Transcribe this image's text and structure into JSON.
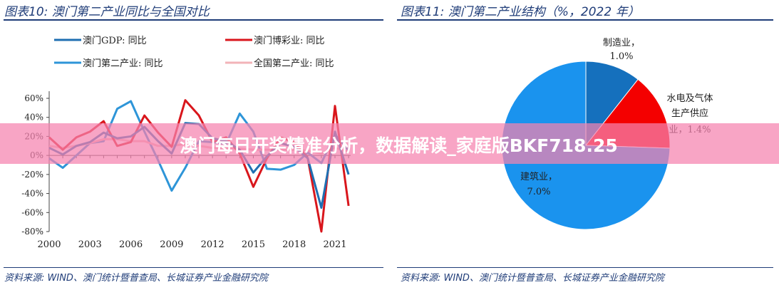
{
  "left": {
    "title": "图表10:  澳门第二产业同比与全国对比",
    "source": "资料来源: WIND、澳门统计暨普查局、长城证券产业金融研究院"
  },
  "right": {
    "title": "图表11:  澳门第二产业结构（%，2022 年）",
    "source": "资料来源: WIND、澳门统计暨普查局、长城证券产业金融研究院"
  },
  "banner": {
    "text": "澳门每日开奖精准分析，数据解读_家庭版BKF718.25"
  },
  "chart_data": [
    {
      "type": "line",
      "title": "",
      "x": [
        2000,
        2001,
        2002,
        2003,
        2004,
        2005,
        2006,
        2007,
        2008,
        2009,
        2010,
        2011,
        2012,
        2013,
        2014,
        2015,
        2016,
        2017,
        2018,
        2019,
        2020,
        2021,
        2022
      ],
      "xticks": [
        "2000",
        "2003",
        "2006",
        "2009",
        "2012",
        "2015",
        "2018",
        "2021"
      ],
      "yticks": [
        "60%",
        "40%",
        "20%",
        "0%",
        "-20%",
        "-40%",
        "-60%",
        "-80%"
      ],
      "ylim": [
        -80,
        60
      ],
      "grid": false,
      "legend": "top",
      "series": [
        {
          "name": "澳门第二产业: 同比",
          "color": "#2e95d8",
          "values": [
            -3,
            -13,
            0,
            13,
            15,
            49,
            57,
            25,
            -5,
            -37,
            -13,
            15,
            14,
            12,
            44,
            25,
            -14,
            -15,
            -10,
            3,
            -8,
            22,
            5
          ]
        },
        {
          "name": "全国第二产业: 同比",
          "color": "#f2b3b8",
          "values": [
            10,
            8,
            10,
            13,
            17,
            17,
            15,
            15,
            10,
            10,
            12,
            10,
            8,
            8,
            7,
            6,
            6,
            6,
            6,
            5,
            2,
            8,
            4
          ]
        },
        {
          "name": "澳门博彩业: 同比",
          "color": "#d9161c",
          "values": [
            19,
            6,
            19,
            25,
            36,
            10,
            14,
            42,
            24,
            9,
            58,
            42,
            14,
            19,
            2,
            -33,
            -3,
            19,
            14,
            -3,
            -80,
            52,
            -53
          ]
        },
        {
          "name": "澳门GDP: 同比",
          "color": "#1f6fb2",
          "values": [
            8,
            1,
            10,
            14,
            24,
            18,
            20,
            30,
            15,
            2,
            34,
            33,
            18,
            15,
            6,
            -18,
            -1,
            13,
            9,
            -3,
            -55,
            25,
            -20
          ]
        }
      ]
    },
    {
      "type": "pie",
      "title": "",
      "slices": [
        {
          "name": "制造业",
          "value": 1.0,
          "label": "1.0%",
          "color": "#1570bd"
        },
        {
          "name": "水电及气体生产供应业",
          "value": 1.4,
          "label": "1.4%",
          "color": "#f40000"
        },
        {
          "name": "建筑业",
          "value": 7.0,
          "label": "7.0%",
          "color": "#1a93ee"
        }
      ]
    }
  ]
}
